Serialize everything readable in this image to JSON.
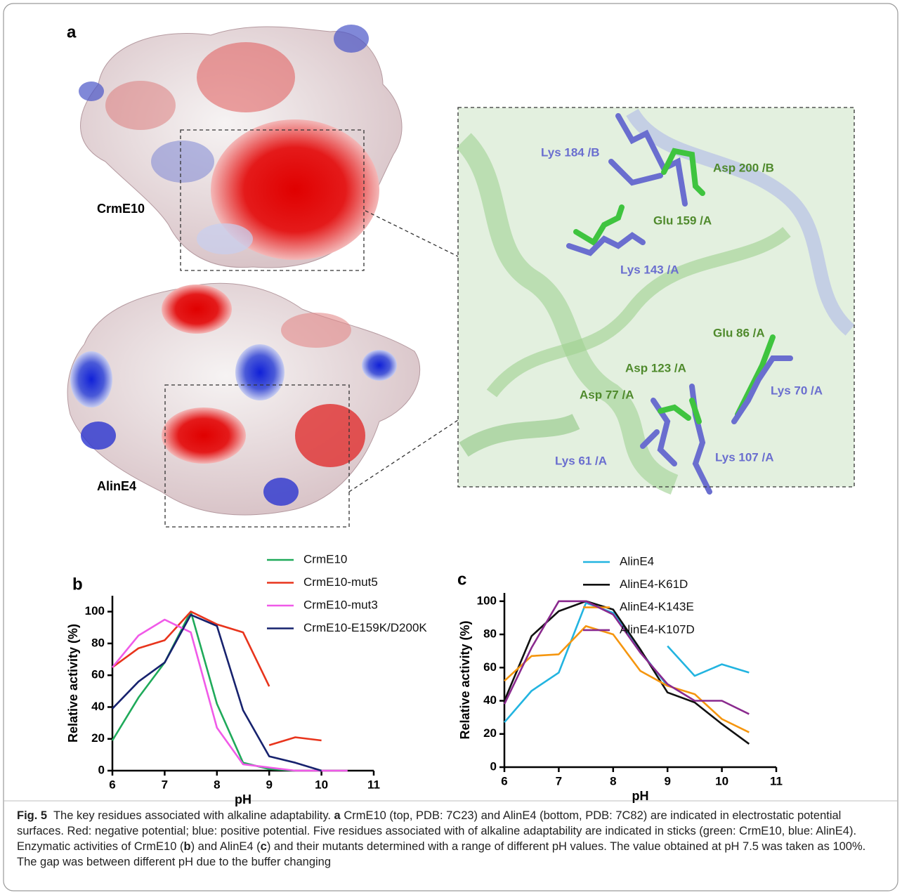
{
  "panel_a": {
    "label": "a",
    "top_protein": "CrmE10",
    "bottom_protein": "AlinE4",
    "residues": [
      {
        "label": "Lys 184 /B",
        "color": "#6a6ecf"
      },
      {
        "label": "Asp 200 /B",
        "color": "#4f8a2c"
      },
      {
        "label": "Glu 159 /A",
        "color": "#4f8a2c"
      },
      {
        "label": "Lys 143 /A",
        "color": "#6a6ecf"
      },
      {
        "label": "Glu 86 /A",
        "color": "#4f8a2c"
      },
      {
        "label": "Asp 123 /A",
        "color": "#4f8a2c"
      },
      {
        "label": "Lys 70 /A",
        "color": "#6a6ecf"
      },
      {
        "label": "Asp 77 /A",
        "color": "#4f8a2c"
      },
      {
        "label": "Lys 61 /A",
        "color": "#6a6ecf"
      },
      {
        "label": "Lys 107 /A",
        "color": "#6a6ecf"
      }
    ]
  },
  "chart_data": [
    {
      "type": "line",
      "label": "b",
      "xlabel": "pH",
      "ylabel": "Relative activity (%)",
      "xlim": [
        6,
        11
      ],
      "xticks": [
        6,
        7,
        8,
        9,
        10,
        11
      ],
      "ylim": [
        0,
        110
      ],
      "yticks": [
        0,
        20,
        40,
        60,
        80,
        100
      ],
      "series": [
        {
          "name": "CrmE10",
          "color": "#1faa5a",
          "x": [
            6,
            6.5,
            7,
            7.5,
            8,
            8.5,
            9,
            9.5
          ],
          "values": [
            19,
            46,
            68,
            100,
            42,
            5,
            1,
            0
          ]
        },
        {
          "name": "CrmE10-mut5",
          "color": "#e8341c",
          "x": [
            6,
            6.5,
            7,
            7.5,
            8,
            8.5,
            9,
            null,
            9,
            9.5,
            10
          ],
          "values": [
            65,
            77,
            82,
            100,
            92,
            87,
            53,
            null,
            16,
            21,
            19
          ]
        },
        {
          "name": "CrmE10-mut3",
          "color": "#f05ae8",
          "x": [
            6,
            6.5,
            7,
            7.5,
            8,
            8.5,
            9,
            9.5,
            10,
            10.5
          ],
          "values": [
            65,
            85,
            95,
            87,
            27,
            4,
            2,
            0,
            0,
            0
          ]
        },
        {
          "name": "CrmE10-E159K/D200K",
          "color": "#17226e",
          "x": [
            6,
            6.5,
            7,
            7.5,
            8,
            8.5,
            9,
            9.5,
            10
          ],
          "values": [
            39,
            56,
            68,
            98,
            91,
            38,
            9,
            5,
            0
          ]
        }
      ]
    },
    {
      "type": "line",
      "label": "c",
      "xlabel": "pH",
      "ylabel": "Relative activity (%)",
      "xlim": [
        6,
        11
      ],
      "xticks": [
        6,
        7,
        8,
        9,
        10,
        11
      ],
      "ylim": [
        0,
        105
      ],
      "yticks": [
        0,
        20,
        40,
        60,
        80,
        100
      ],
      "series": [
        {
          "name": "AlinE4",
          "color": "#22b4e0",
          "x": [
            6,
            6.5,
            7,
            7.5,
            8,
            8.5,
            9,
            null,
            9,
            9.5,
            10,
            10.5
          ],
          "values": [
            27,
            46,
            57,
            99,
            93,
            70,
            49,
            null,
            73,
            55,
            62,
            57
          ]
        },
        {
          "name": "AlinE4-K61D",
          "color": "#111111",
          "x": [
            6,
            6.5,
            7,
            7.5,
            8,
            8.5,
            9,
            9.5,
            10,
            10.5
          ],
          "values": [
            40,
            79,
            94,
            100,
            95,
            71,
            45,
            39,
            26,
            14
          ]
        },
        {
          "name": "AlinE4-K143E",
          "color": "#f5960f",
          "x": [
            6,
            6.5,
            7,
            7.5,
            8,
            8.5,
            9,
            9.5,
            10,
            10.5
          ],
          "values": [
            52,
            67,
            68,
            85,
            80,
            58,
            49,
            44,
            29,
            21
          ]
        },
        {
          "name": "AlinE4-K107D",
          "color": "#8a2a8e",
          "x": [
            6,
            6.5,
            7,
            7.5,
            8,
            8.5,
            9,
            9.5,
            10,
            10.5
          ],
          "values": [
            38,
            72,
            100,
            100,
            92,
            69,
            50,
            40,
            40,
            32
          ]
        }
      ]
    }
  ],
  "caption": {
    "label": "Fig. 5",
    "parts": [
      {
        "text": "  The key residues associated with alkaline adaptability. ",
        "bold": false
      },
      {
        "text": "a",
        "bold": true
      },
      {
        "text": " CrmE10 (top, PDB: 7C23) and AlinE4 (bottom, PDB: 7C82) are indicated in electrostatic potential surfaces. Red: negative potential; blue: positive potential. Five residues associated with of alkaline adaptability are indicated in sticks (green: CrmE10, blue: AlinE4). Enzymatic activities of CrmE10 (",
        "bold": false
      },
      {
        "text": "b",
        "bold": true
      },
      {
        "text": ") and AlinE4 (",
        "bold": false
      },
      {
        "text": "c",
        "bold": true
      },
      {
        "text": ") and their mutants determined with a range of different pH values. The value obtained at pH 7.5 was taken as 100%. The gap was between different pH due to the buffer changing",
        "bold": false
      }
    ]
  }
}
